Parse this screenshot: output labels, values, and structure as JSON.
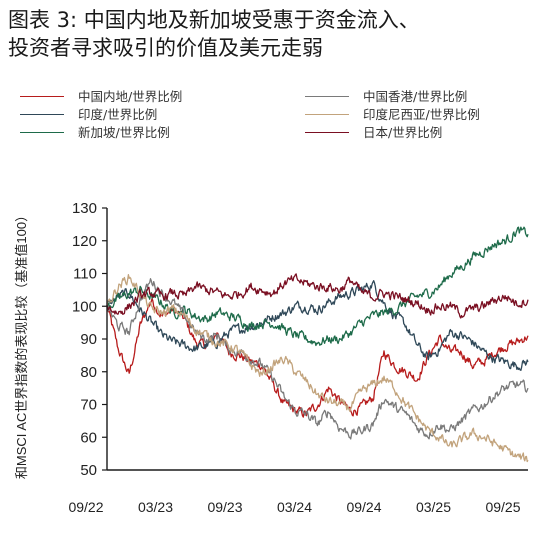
{
  "title_lines": [
    "图表 3:  中国内地及新加坡受惠于资金流入、",
    "投资者寻求吸引的价值及美元走弱"
  ],
  "colors": {
    "china": "#b71c1c",
    "india": "#2f4858",
    "singapore": "#1e6b4a",
    "hongkong": "#7a7a7a",
    "indonesia": "#c2a37c",
    "japan": "#7a0f22",
    "axis": "#1a1a1a"
  },
  "chart_data": {
    "type": "line",
    "ylabel": "和MSCI AC世界指数的表现比较（基准值100）",
    "ylim": [
      50,
      130
    ],
    "yticks": [
      50,
      60,
      70,
      80,
      90,
      100,
      110,
      120,
      130
    ],
    "xticks": [
      "09/22",
      "03/23",
      "09/23",
      "03/24",
      "09/24",
      "03/25",
      "09/25"
    ],
    "x_start": "2022-09",
    "x_end": "2025-11",
    "grid": false,
    "legend_position": "top",
    "series": [
      {
        "name": "中国内地/世界比例",
        "color_key": "china",
        "points": [
          [
            "2022-09",
            100
          ],
          [
            "2022-10",
            87
          ],
          [
            "2022-11",
            79
          ],
          [
            "2022-12",
            94
          ],
          [
            "2023-01",
            102
          ],
          [
            "2023-02",
            97
          ],
          [
            "2023-03",
            99
          ],
          [
            "2023-04",
            96
          ],
          [
            "2023-05",
            89
          ],
          [
            "2023-06",
            88
          ],
          [
            "2023-07",
            92
          ],
          [
            "2023-08",
            86
          ],
          [
            "2023-09",
            85
          ],
          [
            "2023-10",
            83
          ],
          [
            "2023-11",
            82
          ],
          [
            "2023-12",
            76
          ],
          [
            "2024-01",
            70
          ],
          [
            "2024-02",
            68
          ],
          [
            "2024-03",
            67
          ],
          [
            "2024-04",
            70
          ],
          [
            "2024-05",
            75
          ],
          [
            "2024-06",
            71
          ],
          [
            "2024-07",
            68
          ],
          [
            "2024-08",
            69
          ],
          [
            "2024-09",
            72
          ],
          [
            "2024-10",
            86
          ],
          [
            "2024-11",
            82
          ],
          [
            "2024-12",
            80
          ],
          [
            "2025-01",
            78
          ],
          [
            "2025-02",
            85
          ],
          [
            "2025-03",
            90
          ],
          [
            "2025-04",
            86
          ],
          [
            "2025-05",
            86
          ],
          [
            "2025-06",
            82
          ],
          [
            "2025-07",
            83
          ],
          [
            "2025-08",
            86
          ],
          [
            "2025-09",
            88
          ],
          [
            "2025-10",
            89
          ],
          [
            "2025-11",
            91
          ]
        ]
      },
      {
        "name": "印度/世界比例",
        "color_key": "india",
        "points": [
          [
            "2022-09",
            100
          ],
          [
            "2022-10",
            103
          ],
          [
            "2022-11",
            104
          ],
          [
            "2022-12",
            99
          ],
          [
            "2023-01",
            95
          ],
          [
            "2023-02",
            91
          ],
          [
            "2023-03",
            89
          ],
          [
            "2023-04",
            88
          ],
          [
            "2023-05",
            87
          ],
          [
            "2023-06",
            88
          ],
          [
            "2023-07",
            89
          ],
          [
            "2023-08",
            92
          ],
          [
            "2023-09",
            93
          ],
          [
            "2023-10",
            94
          ],
          [
            "2023-11",
            95
          ],
          [
            "2023-12",
            97
          ],
          [
            "2024-01",
            98
          ],
          [
            "2024-02",
            100
          ],
          [
            "2024-03",
            100
          ],
          [
            "2024-04",
            99
          ],
          [
            "2024-05",
            101
          ],
          [
            "2024-06",
            103
          ],
          [
            "2024-07",
            104
          ],
          [
            "2024-08",
            105
          ],
          [
            "2024-09",
            107
          ],
          [
            "2024-10",
            101
          ],
          [
            "2024-11",
            97
          ],
          [
            "2024-12",
            94
          ],
          [
            "2025-01",
            88
          ],
          [
            "2025-02",
            84
          ],
          [
            "2025-03",
            87
          ],
          [
            "2025-04",
            92
          ],
          [
            "2025-05",
            91
          ],
          [
            "2025-06",
            89
          ],
          [
            "2025-07",
            86
          ],
          [
            "2025-08",
            84
          ],
          [
            "2025-09",
            83
          ],
          [
            "2025-10",
            82
          ],
          [
            "2025-11",
            83
          ]
        ]
      },
      {
        "name": "新加坡/世界比例",
        "color_key": "singapore",
        "points": [
          [
            "2022-09",
            100
          ],
          [
            "2022-10",
            102
          ],
          [
            "2022-11",
            104
          ],
          [
            "2022-12",
            105
          ],
          [
            "2023-01",
            103
          ],
          [
            "2023-02",
            101
          ],
          [
            "2023-03",
            98
          ],
          [
            "2023-04",
            99
          ],
          [
            "2023-05",
            97
          ],
          [
            "2023-06",
            96
          ],
          [
            "2023-07",
            98
          ],
          [
            "2023-08",
            97
          ],
          [
            "2023-09",
            96
          ],
          [
            "2023-10",
            94
          ],
          [
            "2023-11",
            95
          ],
          [
            "2023-12",
            95
          ],
          [
            "2024-01",
            93
          ],
          [
            "2024-02",
            91
          ],
          [
            "2024-03",
            90
          ],
          [
            "2024-04",
            89
          ],
          [
            "2024-05",
            90
          ],
          [
            "2024-06",
            90
          ],
          [
            "2024-07",
            92
          ],
          [
            "2024-08",
            95
          ],
          [
            "2024-09",
            97
          ],
          [
            "2024-10",
            98
          ],
          [
            "2024-11",
            99
          ],
          [
            "2024-12",
            101
          ],
          [
            "2025-01",
            103
          ],
          [
            "2025-02",
            104
          ],
          [
            "2025-03",
            106
          ],
          [
            "2025-04",
            110
          ],
          [
            "2025-05",
            112
          ],
          [
            "2025-06",
            115
          ],
          [
            "2025-07",
            117
          ],
          [
            "2025-08",
            119
          ],
          [
            "2025-09",
            120
          ],
          [
            "2025-10",
            123
          ],
          [
            "2025-11",
            122
          ]
        ]
      },
      {
        "name": "中国香港/世界比例",
        "color_key": "hongkong",
        "points": [
          [
            "2022-09",
            100
          ],
          [
            "2022-10",
            94
          ],
          [
            "2022-11",
            92
          ],
          [
            "2022-12",
            102
          ],
          [
            "2023-01",
            108
          ],
          [
            "2023-02",
            104
          ],
          [
            "2023-03",
            101
          ],
          [
            "2023-04",
            97
          ],
          [
            "2023-05",
            92
          ],
          [
            "2023-06",
            90
          ],
          [
            "2023-07",
            91
          ],
          [
            "2023-08",
            87
          ],
          [
            "2023-09",
            86
          ],
          [
            "2023-10",
            84
          ],
          [
            "2023-11",
            82
          ],
          [
            "2023-12",
            78
          ],
          [
            "2024-01",
            72
          ],
          [
            "2024-02",
            68
          ],
          [
            "2024-03",
            67
          ],
          [
            "2024-04",
            64
          ],
          [
            "2024-05",
            68
          ],
          [
            "2024-06",
            63
          ],
          [
            "2024-07",
            61
          ],
          [
            "2024-08",
            62
          ],
          [
            "2024-09",
            64
          ],
          [
            "2024-10",
            72
          ],
          [
            "2024-11",
            69
          ],
          [
            "2024-12",
            67
          ],
          [
            "2025-01",
            63
          ],
          [
            "2025-02",
            61
          ],
          [
            "2025-03",
            64
          ],
          [
            "2025-04",
            62
          ],
          [
            "2025-05",
            65
          ],
          [
            "2025-06",
            68
          ],
          [
            "2025-07",
            70
          ],
          [
            "2025-08",
            73
          ],
          [
            "2025-09",
            75
          ],
          [
            "2025-10",
            76
          ],
          [
            "2025-11",
            75
          ]
        ]
      },
      {
        "name": "印度尼西亚/世界比例",
        "color_key": "indonesia",
        "points": [
          [
            "2022-09",
            100
          ],
          [
            "2022-10",
            106
          ],
          [
            "2022-11",
            109
          ],
          [
            "2022-12",
            104
          ],
          [
            "2023-01",
            99
          ],
          [
            "2023-02",
            98
          ],
          [
            "2023-03",
            99
          ],
          [
            "2023-04",
            97
          ],
          [
            "2023-05",
            93
          ],
          [
            "2023-06",
            91
          ],
          [
            "2023-07",
            89
          ],
          [
            "2023-08",
            88
          ],
          [
            "2023-09",
            86
          ],
          [
            "2023-10",
            82
          ],
          [
            "2023-11",
            79
          ],
          [
            "2023-12",
            82
          ],
          [
            "2024-01",
            84
          ],
          [
            "2024-02",
            80
          ],
          [
            "2024-03",
            77
          ],
          [
            "2024-04",
            73
          ],
          [
            "2024-05",
            71
          ],
          [
            "2024-06",
            70
          ],
          [
            "2024-07",
            69
          ],
          [
            "2024-08",
            74
          ],
          [
            "2024-09",
            76
          ],
          [
            "2024-10",
            78
          ],
          [
            "2024-11",
            75
          ],
          [
            "2024-12",
            70
          ],
          [
            "2025-01",
            66
          ],
          [
            "2025-02",
            62
          ],
          [
            "2025-03",
            60
          ],
          [
            "2025-04",
            57
          ],
          [
            "2025-05",
            59
          ],
          [
            "2025-06",
            61
          ],
          [
            "2025-07",
            60
          ],
          [
            "2025-08",
            58
          ],
          [
            "2025-09",
            56
          ],
          [
            "2025-10",
            54
          ],
          [
            "2025-11",
            53
          ]
        ]
      },
      {
        "name": "日本/世界比例",
        "color_key": "japan",
        "points": [
          [
            "2022-09",
            100
          ],
          [
            "2022-10",
            98
          ],
          [
            "2022-11",
            100
          ],
          [
            "2022-12",
            103
          ],
          [
            "2023-01",
            104
          ],
          [
            "2023-02",
            103
          ],
          [
            "2023-03",
            104
          ],
          [
            "2023-04",
            103
          ],
          [
            "2023-05",
            106
          ],
          [
            "2023-06",
            105
          ],
          [
            "2023-07",
            104
          ],
          [
            "2023-08",
            103
          ],
          [
            "2023-09",
            104
          ],
          [
            "2023-10",
            106
          ],
          [
            "2023-11",
            105
          ],
          [
            "2023-12",
            104
          ],
          [
            "2024-01",
            107
          ],
          [
            "2024-02",
            108
          ],
          [
            "2024-03",
            107
          ],
          [
            "2024-04",
            106
          ],
          [
            "2024-05",
            106
          ],
          [
            "2024-06",
            105
          ],
          [
            "2024-07",
            108
          ],
          [
            "2024-08",
            104
          ],
          [
            "2024-09",
            103
          ],
          [
            "2024-10",
            104
          ],
          [
            "2024-11",
            103
          ],
          [
            "2024-12",
            102
          ],
          [
            "2025-01",
            101
          ],
          [
            "2025-02",
            99
          ],
          [
            "2025-03",
            100
          ],
          [
            "2025-04",
            100
          ],
          [
            "2025-05",
            98
          ],
          [
            "2025-06",
            99
          ],
          [
            "2025-07",
            100
          ],
          [
            "2025-08",
            102
          ],
          [
            "2025-09",
            103
          ],
          [
            "2025-10",
            101
          ],
          [
            "2025-11",
            102
          ]
        ]
      }
    ]
  }
}
